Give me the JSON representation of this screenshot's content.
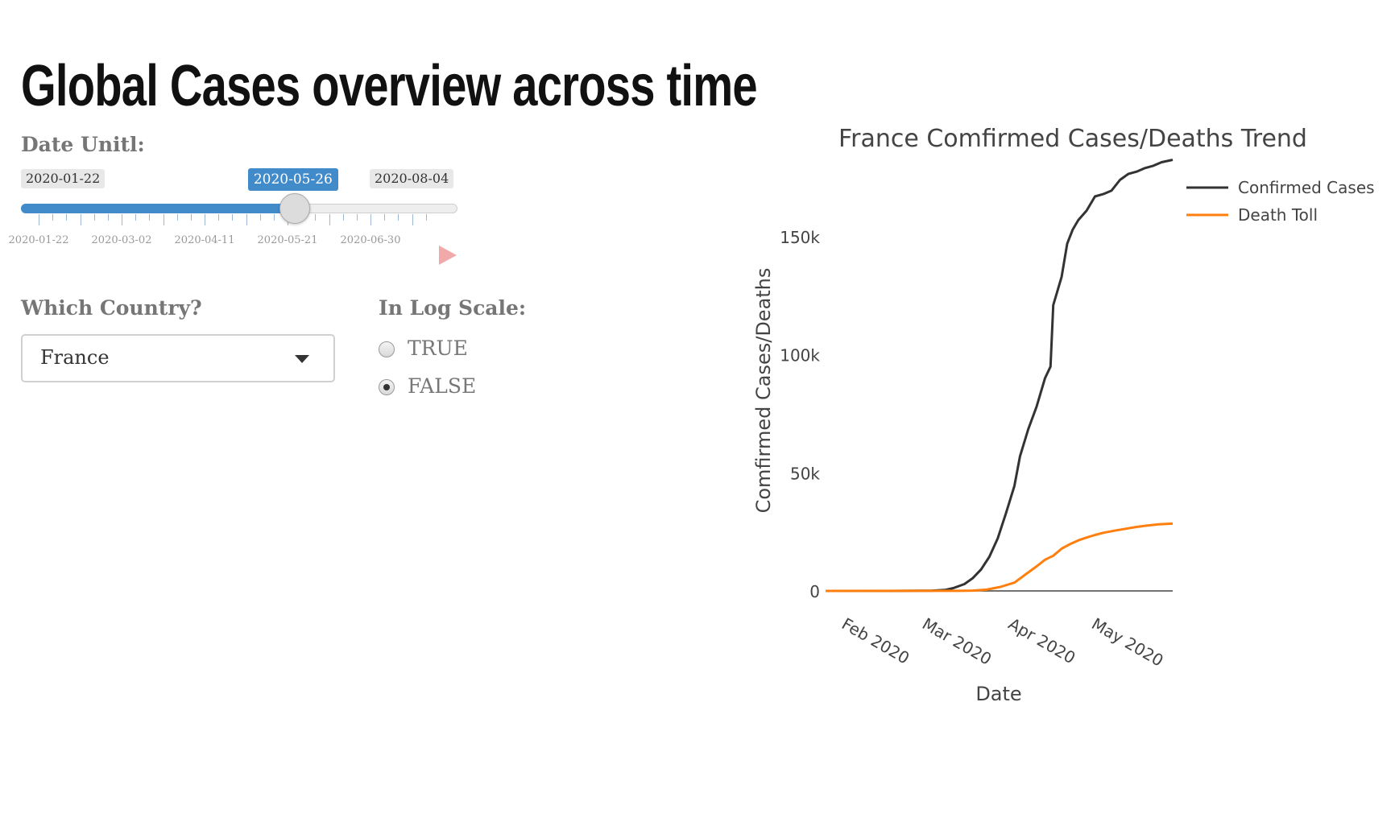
{
  "page": {
    "title": "Global Cases overview across time"
  },
  "date_slider": {
    "label": "Date Unitl:",
    "min_label": "2020-01-22",
    "max_label": "2020-08-04",
    "current_label": "2020-05-26",
    "fraction": 0.627,
    "tick_labels": [
      "2020-01-22",
      "2020-03-02",
      "2020-04-11",
      "2020-05-21",
      "2020-06-30"
    ],
    "play_icon": "play-icon",
    "fill_color": "#428bca"
  },
  "country_select": {
    "label": "Which Country?",
    "value": "France",
    "icon": "caret-down-icon"
  },
  "log_scale": {
    "label": "In Log Scale:",
    "options": [
      {
        "label": "TRUE",
        "checked": false
      },
      {
        "label": "FALSE",
        "checked": true
      }
    ]
  },
  "chart_data": {
    "type": "line",
    "title": "France Comfirmed Cases/Deaths Trend",
    "xlabel": "Date",
    "ylabel": "Comfirmed Cases/Deaths",
    "x_tick_labels": [
      "Feb 2020",
      "Mar 2020",
      "Apr 2020",
      "May 2020"
    ],
    "x_ticks": [
      "2020-02-01",
      "2020-03-01",
      "2020-04-01",
      "2020-05-01"
    ],
    "y_tick_labels": [
      "0",
      "50k",
      "100k",
      "150k"
    ],
    "y_ticks": [
      0,
      50000,
      100000,
      150000
    ],
    "xlim": [
      "2020-01-22",
      "2020-05-26"
    ],
    "ylim": [
      0,
      182000
    ],
    "grid": false,
    "legend_position": "top-right",
    "series": [
      {
        "name": "Confirmed Cases",
        "color": "#333333",
        "points": [
          [
            "2020-01-22",
            0
          ],
          [
            "2020-02-15",
            12
          ],
          [
            "2020-02-29",
            100
          ],
          [
            "2020-03-05",
            420
          ],
          [
            "2020-03-08",
            1200
          ],
          [
            "2020-03-12",
            2900
          ],
          [
            "2020-03-15",
            5400
          ],
          [
            "2020-03-18",
            9100
          ],
          [
            "2020-03-21",
            14500
          ],
          [
            "2020-03-24",
            22300
          ],
          [
            "2020-03-27",
            33000
          ],
          [
            "2020-03-30",
            44500
          ],
          [
            "2020-04-01",
            57000
          ],
          [
            "2020-04-04",
            68500
          ],
          [
            "2020-04-07",
            78000
          ],
          [
            "2020-04-10",
            90000
          ],
          [
            "2020-04-12",
            95000
          ],
          [
            "2020-04-13",
            121000
          ],
          [
            "2020-04-16",
            133000
          ],
          [
            "2020-04-18",
            147000
          ],
          [
            "2020-04-20",
            153000
          ],
          [
            "2020-04-22",
            157000
          ],
          [
            "2020-04-25",
            161000
          ],
          [
            "2020-04-28",
            167000
          ],
          [
            "2020-05-01",
            168000
          ],
          [
            "2020-05-04",
            169500
          ],
          [
            "2020-05-07",
            174000
          ],
          [
            "2020-05-10",
            176500
          ],
          [
            "2020-05-13",
            177500
          ],
          [
            "2020-05-16",
            179000
          ],
          [
            "2020-05-19",
            180000
          ],
          [
            "2020-05-22",
            181500
          ],
          [
            "2020-05-26",
            182500
          ]
        ]
      },
      {
        "name": "Death Toll",
        "color": "#ff7f0e",
        "points": [
          [
            "2020-01-22",
            0
          ],
          [
            "2020-03-10",
            30
          ],
          [
            "2020-03-15",
            130
          ],
          [
            "2020-03-20",
            550
          ],
          [
            "2020-03-25",
            1700
          ],
          [
            "2020-03-30",
            3500
          ],
          [
            "2020-04-03",
            7000
          ],
          [
            "2020-04-07",
            10400
          ],
          [
            "2020-04-10",
            13200
          ],
          [
            "2020-04-13",
            14900
          ],
          [
            "2020-04-16",
            17900
          ],
          [
            "2020-04-19",
            19800
          ],
          [
            "2020-04-22",
            21400
          ],
          [
            "2020-04-25",
            22600
          ],
          [
            "2020-04-28",
            23700
          ],
          [
            "2020-05-01",
            24600
          ],
          [
            "2020-05-05",
            25500
          ],
          [
            "2020-05-09",
            26300
          ],
          [
            "2020-05-13",
            27100
          ],
          [
            "2020-05-17",
            27700
          ],
          [
            "2020-05-21",
            28200
          ],
          [
            "2020-05-26",
            28500
          ]
        ]
      }
    ]
  }
}
